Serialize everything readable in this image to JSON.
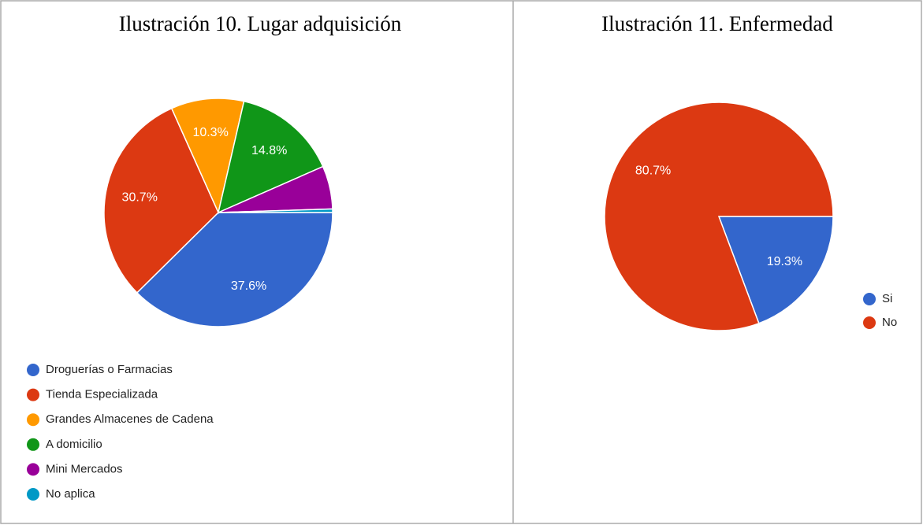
{
  "chart_data": [
    {
      "type": "pie",
      "title": "Ilustración 10. Lugar adquisición",
      "categories": [
        "Droguerías o Farmacias",
        "Tienda Especializada",
        "Grandes Almacenes de Cadena",
        "A domicilio",
        "Mini Mercados",
        "No aplica"
      ],
      "values": [
        37.6,
        30.7,
        10.3,
        14.8,
        6.1,
        0.5
      ],
      "value_labels": [
        "37.6%",
        "30.7%",
        "10.3%",
        "14.8%",
        null,
        null
      ],
      "colors": [
        "#3366cc",
        "#dc3912",
        "#ff9900",
        "#109618",
        "#990099",
        "#0099c6"
      ],
      "legend": "bottom"
    },
    {
      "type": "pie",
      "title": "Ilustración 11. Enfermedad",
      "categories": [
        "Si",
        "No"
      ],
      "values": [
        19.3,
        80.7
      ],
      "value_labels": [
        "19.3%",
        "80.7%"
      ],
      "colors": [
        "#3366cc",
        "#dc3912"
      ],
      "legend": "right"
    }
  ]
}
